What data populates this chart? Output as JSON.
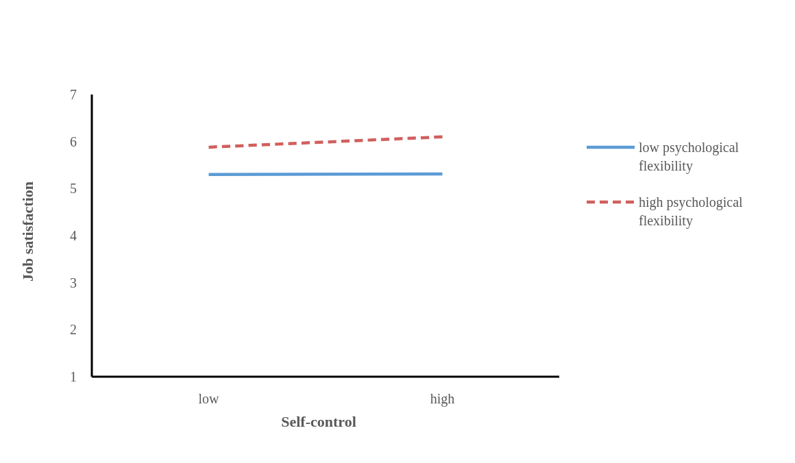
{
  "chart_data": {
    "type": "line",
    "xlabel": "Self-control",
    "ylabel": "Job satisfaction",
    "categories": [
      "low",
      "high"
    ],
    "ylim": [
      1,
      7
    ],
    "yticks": [
      1,
      2,
      3,
      4,
      5,
      6,
      7
    ],
    "legend": "right",
    "marker": "none",
    "series": [
      {
        "name": "low psychological flexibility",
        "color": "#5b9bd5",
        "values": [
          5.3,
          5.31
        ],
        "line_style": "solid"
      },
      {
        "name": "high psychological flexibility",
        "color": "#d0605e",
        "values": [
          5.88,
          6.1
        ],
        "line_style": "dashed"
      }
    ]
  }
}
